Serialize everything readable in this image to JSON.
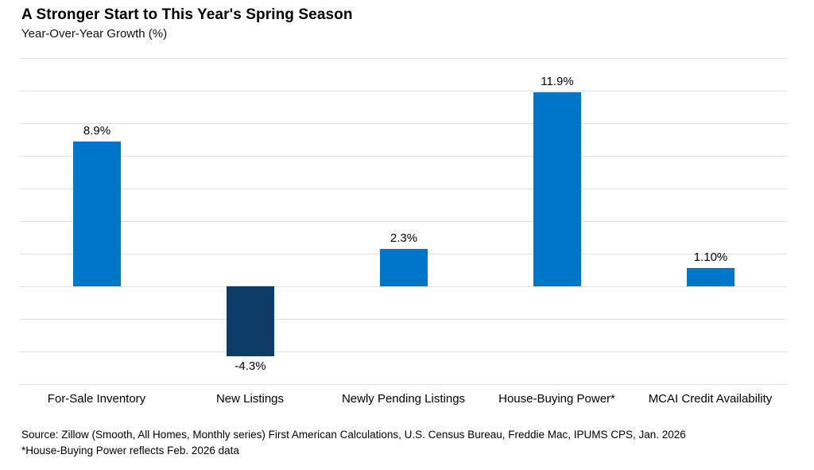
{
  "header": {
    "title": "A Stronger Start to This Year's Spring Season",
    "subtitle": "Year-Over-Year Growth (%)"
  },
  "chart_data": {
    "type": "bar",
    "title": "A Stronger Start to This Year's Spring Season",
    "subtitle": "Year-Over-Year Growth (%)",
    "categories": [
      "For-Sale Inventory",
      "New Listings",
      "Newly Pending Listings",
      "House-Buying Power*",
      "MCAI Credit Availability"
    ],
    "values": [
      8.9,
      -4.3,
      2.3,
      11.9,
      1.1
    ],
    "value_labels": [
      "8.9%",
      "-4.3%",
      "2.3%",
      "11.9%",
      "1.10%"
    ],
    "xlabel": "",
    "ylabel": "Year-Over-Year Growth (%)",
    "ylim": [
      -6,
      14
    ],
    "gridline_step": 2,
    "grid": "horizontal-only",
    "y_axis_tick_labels": "none",
    "legend": "none",
    "colors": {
      "positive_bar": "#0076C8",
      "negative_bar": "#0E3C69",
      "gridline": "#E0E0E0",
      "text": "#000000",
      "background": "#FFFFFF"
    }
  },
  "footer": {
    "source_line1": "Source: Zillow (Smooth, All Homes, Monthly series) First American Calculations, U.S. Census Bureau, Freddie Mac, IPUMS CPS, Jan. 2026",
    "source_line2": "*House-Buying Power reflects Feb. 2026 data"
  }
}
